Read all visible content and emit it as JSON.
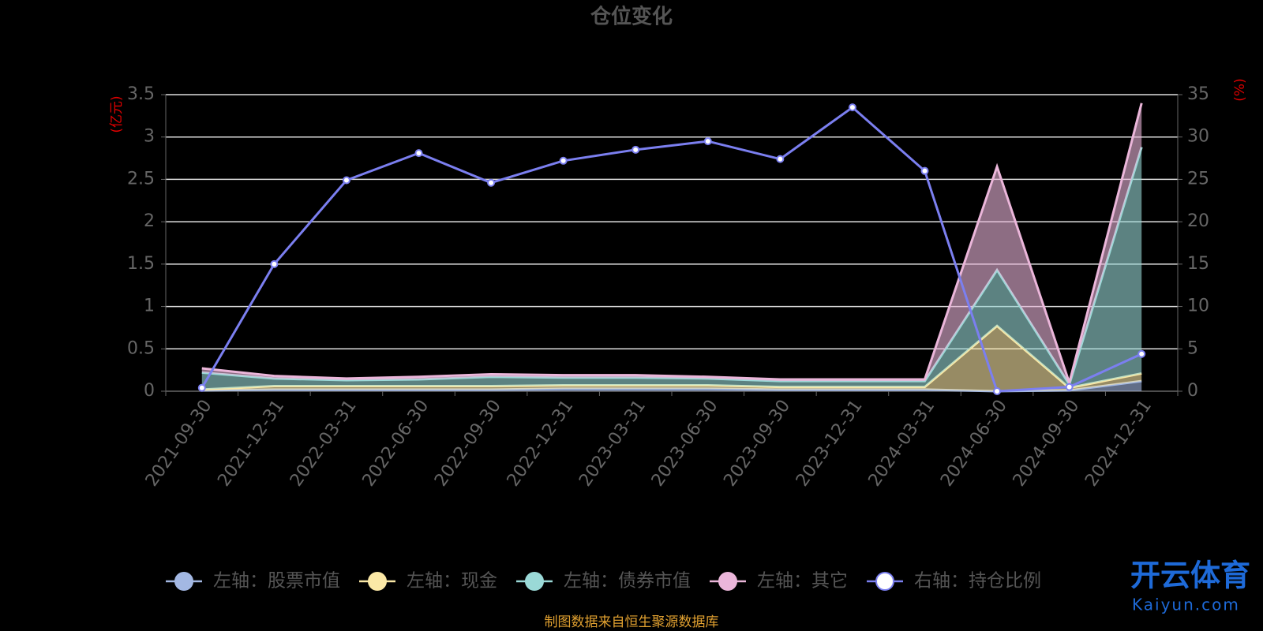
{
  "chart_data": {
    "type": "stacked-area-line",
    "title": "仓位变化",
    "y_label": "(亿元)",
    "y2_label": "(%)",
    "source": "制图数据来自恒生聚源数据库",
    "watermark": [
      "开云体育",
      "Kaiyun.com"
    ],
    "categories": [
      "2021-09-30",
      "2021-12-31",
      "2022-03-31",
      "2022-06-30",
      "2022-09-30",
      "2022-12-31",
      "2023-03-31",
      "2023-06-30",
      "2023-09-30",
      "2023-12-31",
      "2024-03-31",
      "2024-06-30",
      "2024-09-30",
      "2024-12-31"
    ],
    "series": [
      {
        "name": "左轴：股票市值",
        "color": "#a3b8e3",
        "values": [
          0.01,
          0.02,
          0.02,
          0.02,
          0.02,
          0.03,
          0.03,
          0.03,
          0.02,
          0.02,
          0.02,
          0.0,
          0.01,
          0.12
        ]
      },
      {
        "name": "左轴：现金",
        "color": "#fbe8a6",
        "values": [
          0.01,
          0.04,
          0.04,
          0.04,
          0.04,
          0.04,
          0.04,
          0.04,
          0.03,
          0.03,
          0.03,
          0.77,
          0.03,
          0.09
        ]
      },
      {
        "name": "左轴：债券市值",
        "color": "#9ad9d7",
        "values": [
          0.2,
          0.09,
          0.07,
          0.08,
          0.11,
          0.09,
          0.09,
          0.08,
          0.07,
          0.07,
          0.07,
          0.66,
          0.04,
          2.67
        ]
      },
      {
        "name": "左轴：其它",
        "color": "#ebb6da",
        "values": [
          0.05,
          0.03,
          0.02,
          0.03,
          0.03,
          0.03,
          0.03,
          0.02,
          0.02,
          0.02,
          0.02,
          1.22,
          0.02,
          0.52
        ]
      },
      {
        "name": "右轴：持仓比例",
        "color": "#7b7ff0",
        "axis": "y2",
        "values": [
          0.4,
          15.0,
          24.9,
          28.1,
          24.6,
          27.2,
          28.5,
          29.5,
          27.4,
          33.5,
          26.0,
          0.0,
          0.5,
          4.4
        ]
      }
    ],
    "ylim": [
      0,
      3.5
    ],
    "yticks": [
      0,
      0.5,
      1,
      1.5,
      2,
      2.5,
      3,
      3.5
    ],
    "y2lim": [
      0,
      35
    ],
    "y2ticks": [
      0,
      5,
      10,
      15,
      20,
      25,
      30,
      35
    ],
    "grid": true
  }
}
